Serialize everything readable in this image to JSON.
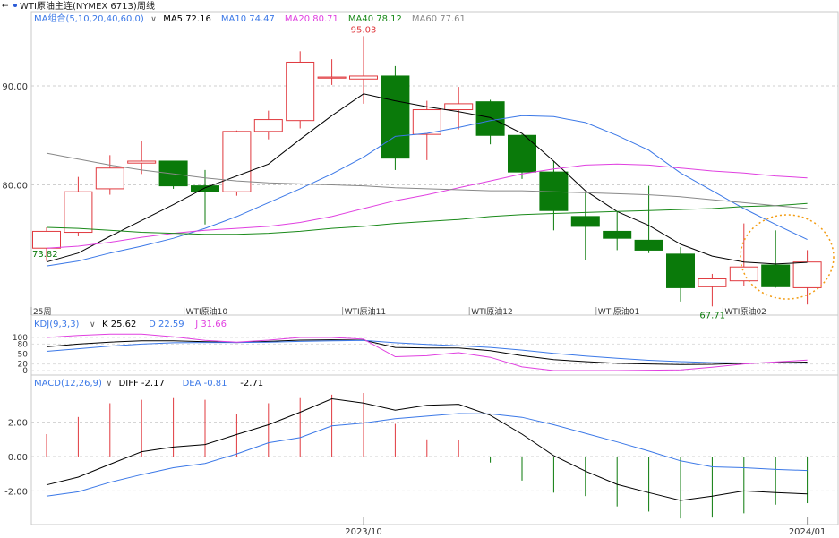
{
  "topbar": {
    "back": "←",
    "instrument": "WTI原油主连(NYMEX 6713)",
    "period": "周线"
  },
  "ma_legend": {
    "title": "MA组合(5,10,20,40,60,0)",
    "items": [
      {
        "label": "MA5 72.16",
        "color": "#000000"
      },
      {
        "label": "MA10 74.47",
        "color": "#3b78e7"
      },
      {
        "label": "MA20 80.71",
        "color": "#e040e0"
      },
      {
        "label": "MA40 78.12",
        "color": "#1a8a1a"
      },
      {
        "label": "MA60 77.61",
        "color": "#888888"
      }
    ]
  },
  "kdj_legend": {
    "title": "KDJ(9,3,3)",
    "items": [
      {
        "label": "K 25.62",
        "color": "#000000"
      },
      {
        "label": "D 22.59",
        "color": "#3b78e7"
      },
      {
        "label": "J 31.66",
        "color": "#e040e0"
      }
    ]
  },
  "macd_legend": {
    "title": "MACD(12,26,9)",
    "items": [
      {
        "label": "DIFF -2.17",
        "color": "#000000"
      },
      {
        "label": "DEA -0.81",
        "color": "#3b78e7"
      },
      {
        "label": "-2.71",
        "color": "#000000"
      }
    ]
  },
  "chart_data": [
    {
      "type": "candlestick",
      "panel": "price",
      "x": [
        "2023-08-18",
        "2023-08-25",
        "2023-09-01",
        "2023-09-08",
        "2023-09-15",
        "2023-09-22",
        "2023-09-29",
        "2023-10-06",
        "2023-10-13",
        "2023-10-20",
        "2023-10-27",
        "2023-11-03",
        "2023-11-10",
        "2023-11-17",
        "2023-11-24",
        "2023-12-01",
        "2023-12-08",
        "2023-12-15",
        "2023-12-22",
        "2023-12-29",
        "2024-01-05",
        "2024-01-12",
        "2024-01-19",
        "2024-01-26",
        "2024-02-02"
      ],
      "ohlc": [
        [
          73.6,
          75.7,
          72.3,
          75.3
        ],
        [
          75.2,
          80.8,
          74.8,
          79.3
        ],
        [
          79.6,
          83.0,
          79.0,
          81.7
        ],
        [
          82.2,
          84.4,
          81.1,
          82.4
        ],
        [
          82.4,
          82.4,
          79.6,
          79.9
        ],
        [
          79.9,
          81.5,
          76.0,
          79.3
        ],
        [
          79.3,
          85.5,
          78.9,
          85.4
        ],
        [
          85.4,
          87.5,
          84.6,
          86.6
        ],
        [
          86.5,
          93.5,
          85.7,
          92.4
        ],
        [
          90.9,
          92.7,
          90.1,
          90.9
        ],
        [
          90.7,
          95.03,
          88.2,
          91.0
        ],
        [
          91.0,
          92.0,
          81.5,
          82.7
        ],
        [
          85.1,
          88.5,
          82.5,
          87.6
        ],
        [
          87.6,
          89.9,
          85.6,
          88.2
        ],
        [
          88.4,
          88.6,
          84.1,
          85.0
        ],
        [
          85.0,
          85.1,
          80.6,
          81.3
        ],
        [
          81.3,
          82.4,
          75.4,
          77.4
        ],
        [
          76.8,
          79.3,
          72.4,
          75.8
        ],
        [
          75.3,
          77.3,
          73.4,
          74.6
        ],
        [
          74.4,
          79.9,
          73.1,
          73.4
        ],
        [
          73.0,
          73.7,
          68.2,
          69.6
        ],
        [
          69.7,
          71.0,
          67.71,
          70.5
        ],
        [
          70.3,
          76.1,
          69.8,
          71.7
        ],
        [
          71.9,
          75.4,
          69.6,
          69.7
        ],
        [
          69.6,
          73.4,
          67.9,
          72.2
        ]
      ],
      "ma": {
        "MA5": [
          72.2,
          73.1,
          74.8,
          76.4,
          78.0,
          79.7,
          80.9,
          82.1,
          84.6,
          87.0,
          89.2,
          88.5,
          87.9,
          87.4,
          86.8,
          85.2,
          82.4,
          79.4,
          77.3,
          75.9,
          74.0,
          72.8,
          72.2,
          72.0,
          72.16
        ],
        "MA10": [
          71.8,
          72.3,
          73.1,
          73.8,
          74.6,
          75.6,
          76.8,
          78.2,
          79.6,
          81.1,
          82.8,
          84.9,
          85.2,
          85.8,
          86.5,
          87.0,
          86.9,
          86.3,
          85.0,
          83.5,
          81.2,
          79.4,
          77.6,
          76.0,
          74.47
        ],
        "MA20": [
          73.6,
          73.8,
          74.2,
          74.7,
          75.1,
          75.4,
          75.6,
          75.8,
          76.2,
          76.8,
          77.6,
          78.4,
          79.0,
          79.7,
          80.4,
          81.1,
          81.6,
          82.0,
          82.1,
          82.0,
          81.7,
          81.4,
          81.2,
          80.9,
          80.71
        ],
        "MA40": [
          75.7,
          75.6,
          75.4,
          75.2,
          75.1,
          75.0,
          75.0,
          75.1,
          75.3,
          75.6,
          75.8,
          76.1,
          76.3,
          76.5,
          76.8,
          77.0,
          77.1,
          77.2,
          77.3,
          77.4,
          77.5,
          77.6,
          77.8,
          77.9,
          78.12
        ],
        "MA60": [
          83.2,
          82.6,
          82.0,
          81.5,
          81.1,
          80.7,
          80.4,
          80.2,
          80.1,
          80.0,
          79.9,
          79.7,
          79.6,
          79.5,
          79.4,
          79.4,
          79.3,
          79.2,
          79.1,
          79.0,
          78.8,
          78.5,
          78.2,
          77.9,
          77.61
        ]
      },
      "yticks": [
        90.0,
        80.0
      ],
      "tick_labels": [
        "90.00",
        "80.00"
      ],
      "annotations": [
        {
          "text": "95.03",
          "note": "high"
        },
        {
          "text": "73.82",
          "note": "low"
        },
        {
          "text": "67.71",
          "note": "low"
        }
      ],
      "x_markers": [
        {
          "index": 0,
          "label": "25周"
        },
        {
          "index": 4,
          "label": "WTI原油10"
        },
        {
          "index": 9,
          "label": "WTI原油11"
        },
        {
          "index": 13,
          "label": "WTI原油12"
        },
        {
          "index": 17,
          "label": "WTI原油01"
        },
        {
          "index": 21,
          "label": "WTI原油02"
        }
      ],
      "highlight": {
        "shape": "dotted-circle",
        "color": "#f39c12",
        "indices": [
          23,
          24
        ]
      }
    },
    {
      "type": "line",
      "panel": "kdj",
      "series": [
        {
          "name": "K",
          "values": [
            72,
            80,
            86,
            90,
            90,
            87,
            85,
            88,
            92,
            93,
            92,
            70,
            68,
            68,
            60,
            45,
            33,
            27,
            22,
            20,
            18,
            19,
            22,
            24,
            25.62
          ]
        },
        {
          "name": "D",
          "values": [
            58,
            66,
            74,
            80,
            84,
            85,
            85,
            86,
            88,
            90,
            91,
            84,
            79,
            75,
            70,
            62,
            52,
            44,
            37,
            31,
            27,
            24,
            23,
            23,
            22.59
          ]
        },
        {
          "name": "J",
          "values": [
            100,
            106,
            110,
            110,
            102,
            91,
            86,
            92,
            100,
            100,
            95,
            42,
            45,
            54,
            40,
            11,
            0,
            0,
            0,
            1,
            2,
            10,
            20,
            26,
            31.66
          ]
        }
      ],
      "ylim": [
        0,
        100
      ],
      "yticks": [
        100,
        80,
        50,
        20,
        0
      ],
      "tick_labels": [
        "100",
        "80",
        "50",
        "20",
        "0"
      ]
    },
    {
      "type": "bar+line",
      "panel": "macd",
      "series": [
        {
          "name": "DIFF",
          "values": [
            -1.65,
            -1.2,
            -0.45,
            0.28,
            0.55,
            0.7,
            1.28,
            1.85,
            2.58,
            3.36,
            3.11,
            2.7,
            2.98,
            3.04,
            2.4,
            1.3,
            0.05,
            -0.85,
            -1.62,
            -2.1,
            -2.55,
            -2.3,
            -2.0,
            -2.1,
            -2.17
          ]
        },
        {
          "name": "DEA",
          "values": [
            -2.3,
            -2.05,
            -1.5,
            -1.05,
            -0.65,
            -0.4,
            0.15,
            0.8,
            1.1,
            1.78,
            1.95,
            2.2,
            2.35,
            2.5,
            2.48,
            2.28,
            1.85,
            1.35,
            0.85,
            0.32,
            -0.25,
            -0.6,
            -0.65,
            -0.75,
            -0.81
          ]
        },
        {
          "name": "MACD",
          "values": [
            1.3,
            2.3,
            3.1,
            3.3,
            3.4,
            3.3,
            2.5,
            3.1,
            3.4,
            3.6,
            3.7,
            1.9,
            1.0,
            0.95,
            -0.35,
            -1.4,
            -2.1,
            -2.3,
            -2.9,
            -3.2,
            -3.6,
            -3.55,
            -3.3,
            -2.8,
            -2.71
          ]
        }
      ],
      "yticks": [
        2.0,
        0.0,
        -2.0
      ],
      "tick_labels": [
        "2.00",
        "0.00",
        "-2.00"
      ],
      "x_labels": [
        {
          "index": 10,
          "label": "2023/10"
        },
        {
          "index": 24,
          "label": "2024/01"
        }
      ]
    }
  ]
}
